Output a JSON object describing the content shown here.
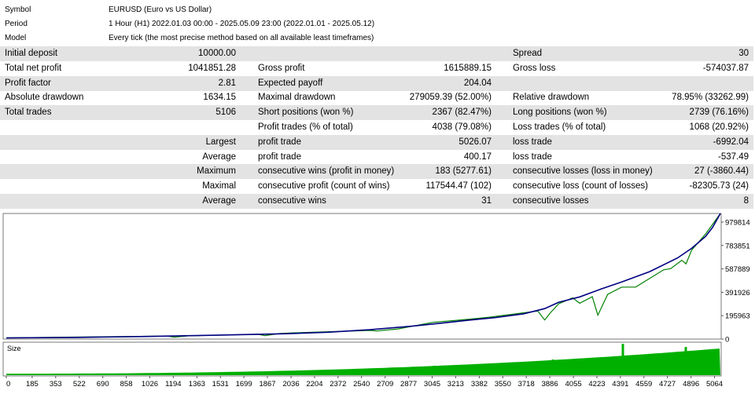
{
  "header": [
    {
      "key": "Symbol",
      "value": "EURUSD (Euro vs US Dollar)"
    },
    {
      "key": "Period",
      "value": "1 Hour (H1) 2022.01.03 00:00 - 2025.05.09 23:00 (2022.01.01 - 2025.05.12)"
    },
    {
      "key": "Model",
      "value": "Every tick (the most precise method based on all available least timeframes)"
    }
  ],
  "stats": [
    {
      "c0": "Initial deposit",
      "c1": "10000.00",
      "c2": "",
      "c3": "",
      "c4": "Spread",
      "c5": "30"
    },
    {
      "c0": "Total net profit",
      "c1": "1041851.28",
      "c2": "Gross profit",
      "c3": "1615889.15",
      "c4": "Gross loss",
      "c5": "-574037.87"
    },
    {
      "c0": "Profit factor",
      "c1": "2.81",
      "c2": "Expected payoff",
      "c3": "204.04",
      "c4": "",
      "c5": ""
    },
    {
      "c0": "Absolute drawdown",
      "c1": "1634.15",
      "c2": "Maximal drawdown",
      "c3": "279059.39 (52.00%)",
      "c4": "Relative drawdown",
      "c5": "78.95% (33262.99)"
    },
    {
      "c0": "Total trades",
      "c1": "5106",
      "c2": "Short positions (won %)",
      "c3": "2367 (82.47%)",
      "c4": "Long positions (won %)",
      "c5": "2739 (76.16%)"
    },
    {
      "c0": "",
      "c1": "",
      "c2": "Profit trades (% of total)",
      "c3": "4038 (79.08%)",
      "c4": "Loss trades (% of total)",
      "c5": "1068 (20.92%)"
    },
    {
      "c0": "",
      "c1": "Largest",
      "c2": "profit trade",
      "c3": "5026.07",
      "c4": "loss trade",
      "c5": "-6992.04"
    },
    {
      "c0": "",
      "c1": "Average",
      "c2": "profit trade",
      "c3": "400.17",
      "c4": "loss trade",
      "c5": "-537.49"
    },
    {
      "c0": "",
      "c1": "Maximum",
      "c2": "consecutive wins (profit in money)",
      "c3": "183 (5277.61)",
      "c4": "consecutive losses (loss in money)",
      "c5": "27 (-3860.44)"
    },
    {
      "c0": "",
      "c1": "Maximal",
      "c2": "consecutive profit (count of wins)",
      "c3": "117544.47 (102)",
      "c4": "consecutive loss (count of losses)",
      "c5": "-82305.73 (24)"
    },
    {
      "c0": "",
      "c1": "Average",
      "c2": "consecutive wins",
      "c3": "31",
      "c4": "consecutive losses",
      "c5": "8"
    }
  ],
  "chart_data": {
    "type": "line",
    "title": "",
    "xlabel": "",
    "ylabel": "",
    "x_ticks": [
      0,
      185,
      353,
      522,
      690,
      858,
      1026,
      1194,
      1363,
      1531,
      1699,
      1867,
      2036,
      2204,
      2372,
      2540,
      2709,
      2877,
      3045,
      3213,
      3382,
      3550,
      3718,
      3886,
      4055,
      4223,
      4391,
      4559,
      4727,
      4896,
      5064
    ],
    "y_ticks": [
      0,
      195963,
      391926,
      587889,
      783851,
      979814
    ],
    "ylim": [
      0,
      1051851
    ],
    "xlim": [
      0,
      5106
    ],
    "series": [
      {
        "color": "#000080",
        "x": [
          0,
          500,
          1000,
          1500,
          2000,
          2300,
          2600,
          2900,
          3100,
          3300,
          3500,
          3700,
          3850,
          3950,
          4100,
          4250,
          4400,
          4600,
          4800,
          4900,
          5000,
          5050,
          5106
        ],
        "values": [
          10000,
          14000,
          22000,
          32000,
          45000,
          57000,
          78000,
          108000,
          132000,
          157000,
          180000,
          212000,
          255000,
          308000,
          353000,
          418000,
          478000,
          565000,
          680000,
          760000,
          860000,
          935000,
          1051851
        ]
      },
      {
        "color": "#008000",
        "x": [
          0,
          1150,
          1200,
          1300,
          1800,
          1850,
          1950,
          2050,
          2600,
          2650,
          2800,
          3050,
          3300,
          3450,
          3800,
          3850,
          3890,
          3950,
          4050,
          4100,
          4190,
          4230,
          4300,
          4400,
          4500,
          4700,
          4750,
          4830,
          4860,
          4900,
          5000,
          5106
        ],
        "values": [
          10000,
          25000,
          15000,
          27000,
          40000,
          28000,
          46000,
          52000,
          72000,
          68000,
          85000,
          140000,
          165000,
          183000,
          235000,
          160000,
          220000,
          295000,
          345000,
          300000,
          355000,
          200000,
          375000,
          435000,
          435000,
          580000,
          590000,
          660000,
          630000,
          745000,
          880000,
          1051851
        ]
      }
    ],
    "size_bars": {
      "label": "Size",
      "spikes": [
        [
          2850,
          0.25
        ],
        [
          3050,
          0.3
        ],
        [
          3150,
          0.2
        ],
        [
          3250,
          0.3
        ],
        [
          3500,
          0.35
        ],
        [
          3700,
          0.4
        ],
        [
          3900,
          0.5
        ],
        [
          4050,
          0.5
        ],
        [
          4250,
          0.55
        ],
        [
          4400,
          1.0
        ],
        [
          4550,
          0.3
        ],
        [
          4850,
          0.9
        ],
        [
          4950,
          0.4
        ]
      ]
    },
    "grid": false
  }
}
